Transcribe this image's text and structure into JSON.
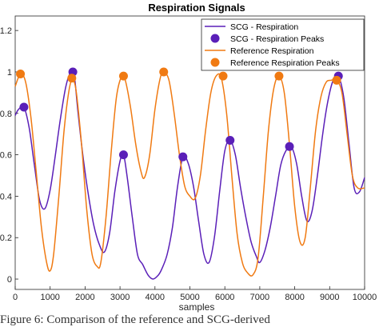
{
  "chart_data": {
    "type": "line",
    "title": "Respiration Signals",
    "xlabel": "samples",
    "ylabel": "",
    "xlim": [
      0,
      10000
    ],
    "ylim": [
      -0.05,
      1.27
    ],
    "xticks": [
      0,
      1000,
      2000,
      3000,
      4000,
      5000,
      6000,
      7000,
      8000,
      9000,
      10000
    ],
    "yticks": [
      0,
      0.2,
      0.4,
      0.6,
      0.8,
      1,
      1.2
    ],
    "ytick_labels": [
      "0",
      "0.2",
      "0.4",
      "0.6",
      "0.8",
      "1",
      "1.2"
    ],
    "legend_position": "top-right",
    "series": [
      {
        "name": "SCG - Respiration",
        "kind": "line",
        "color": "#5a1fb8",
        "x": [
          0,
          100,
          250,
          400,
          550,
          700,
          850,
          1000,
          1150,
          1300,
          1450,
          1600,
          1700,
          1800,
          1950,
          2100,
          2250,
          2400,
          2550,
          2700,
          2850,
          3000,
          3100,
          3200,
          3350,
          3500,
          3650,
          3800,
          3950,
          4100,
          4200,
          4350,
          4500,
          4650,
          4800,
          4950,
          5100,
          5250,
          5400,
          5550,
          5700,
          5850,
          6000,
          6150,
          6300,
          6450,
          6600,
          6750,
          6900,
          7000,
          7150,
          7300,
          7450,
          7600,
          7750,
          7900,
          8050,
          8200,
          8350,
          8500,
          8650,
          8800,
          8950,
          9100,
          9250,
          9400,
          9550,
          9700,
          9850,
          10000
        ],
        "y": [
          0.79,
          0.82,
          0.83,
          0.73,
          0.55,
          0.38,
          0.34,
          0.43,
          0.6,
          0.78,
          0.93,
          1.0,
          0.97,
          0.8,
          0.58,
          0.4,
          0.26,
          0.17,
          0.13,
          0.22,
          0.42,
          0.57,
          0.6,
          0.5,
          0.3,
          0.12,
          0.07,
          0.02,
          0.0,
          0.02,
          0.05,
          0.12,
          0.25,
          0.45,
          0.59,
          0.56,
          0.45,
          0.28,
          0.12,
          0.08,
          0.2,
          0.42,
          0.62,
          0.67,
          0.6,
          0.44,
          0.3,
          0.18,
          0.11,
          0.08,
          0.14,
          0.25,
          0.4,
          0.55,
          0.62,
          0.64,
          0.56,
          0.4,
          0.28,
          0.33,
          0.5,
          0.7,
          0.86,
          0.96,
          0.98,
          0.88,
          0.66,
          0.44,
          0.42,
          0.49
        ]
      },
      {
        "name": "SCG - Respiration Peaks",
        "kind": "points",
        "color": "#5a1fb8",
        "x": [
          250,
          1650,
          3100,
          4800,
          6150,
          7850,
          9250
        ],
        "y": [
          0.83,
          1.0,
          0.6,
          0.59,
          0.67,
          0.64,
          0.98
        ]
      },
      {
        "name": "Reference Respiration",
        "kind": "line",
        "color": "#f07a12",
        "x": [
          0,
          150,
          300,
          450,
          600,
          750,
          900,
          1000,
          1100,
          1250,
          1400,
          1550,
          1650,
          1750,
          1900,
          2050,
          2200,
          2350,
          2450,
          2600,
          2750,
          2900,
          3050,
          3150,
          3300,
          3450,
          3600,
          3700,
          3850,
          4000,
          4150,
          4250,
          4400,
          4550,
          4700,
          4850,
          5000,
          5150,
          5300,
          5450,
          5600,
          5750,
          5900,
          6050,
          6200,
          6350,
          6500,
          6650,
          6800,
          6950,
          7100,
          7250,
          7400,
          7550,
          7700,
          7850,
          8000,
          8150,
          8300,
          8450,
          8600,
          8750,
          8900,
          9050,
          9200,
          9350,
          9500,
          9650,
          9800,
          10000
        ],
        "y": [
          0.93,
          0.99,
          0.95,
          0.78,
          0.52,
          0.25,
          0.08,
          0.04,
          0.12,
          0.4,
          0.72,
          0.92,
          0.96,
          0.9,
          0.65,
          0.33,
          0.12,
          0.06,
          0.08,
          0.3,
          0.62,
          0.88,
          0.98,
          0.96,
          0.83,
          0.65,
          0.52,
          0.49,
          0.6,
          0.82,
          0.97,
          1.0,
          0.96,
          0.8,
          0.6,
          0.45,
          0.4,
          0.39,
          0.5,
          0.72,
          0.9,
          0.98,
          0.97,
          0.8,
          0.5,
          0.22,
          0.08,
          0.03,
          0.02,
          0.1,
          0.4,
          0.72,
          0.92,
          0.98,
          0.9,
          0.65,
          0.35,
          0.18,
          0.2,
          0.45,
          0.72,
          0.88,
          0.95,
          0.96,
          0.96,
          0.9,
          0.7,
          0.5,
          0.44,
          0.44
        ]
      },
      {
        "name": "Reference Respiration Peaks",
        "kind": "points",
        "color": "#f07a12",
        "x": [
          150,
          1620,
          3100,
          4250,
          5950,
          7550,
          9200
        ],
        "y": [
          0.99,
          0.97,
          0.98,
          1.0,
          0.98,
          0.98,
          0.96
        ]
      }
    ]
  },
  "caption": "Figure 6: Comparison of the reference and SCG-derived"
}
